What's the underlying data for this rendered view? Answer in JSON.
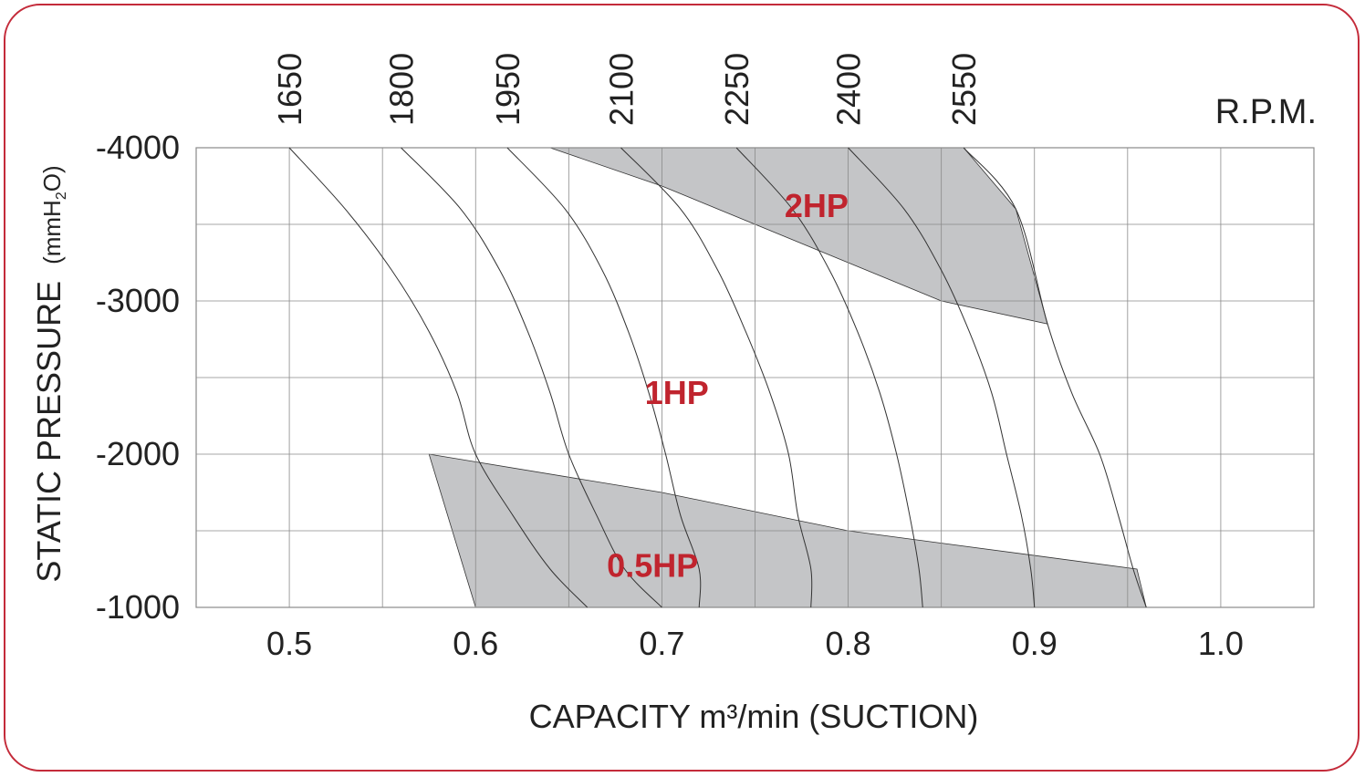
{
  "chart_data": {
    "type": "line",
    "xlabel": "CAPACITY m³/min (SUCTION)",
    "ylabel_main": "STATIC PRESSURE",
    "ylabel_unit_pre": "(mmH",
    "ylabel_unit_sub": "2",
    "ylabel_unit_post": "O)",
    "rpm_label": "R.P.M.",
    "xlim": [
      0.45,
      1.05
    ],
    "ylim": [
      -1000,
      -4000
    ],
    "x_ticks": [
      "0.5",
      "0.6",
      "0.7",
      "0.8",
      "0.9",
      "1.0"
    ],
    "x_tick_values": [
      0.5,
      0.6,
      0.7,
      0.8,
      0.9,
      1.0
    ],
    "y_ticks": [
      "-4000",
      "-3000",
      "-2000",
      "-1000"
    ],
    "y_tick_values": [
      -4000,
      -3000,
      -2000,
      -1000
    ],
    "grid": true,
    "series": [
      {
        "name": "1650",
        "points": [
          [
            0.5,
            -4000
          ],
          [
            0.53,
            -3600
          ],
          [
            0.555,
            -3200
          ],
          [
            0.575,
            -2800
          ],
          [
            0.59,
            -2400
          ],
          [
            0.6,
            -2000
          ],
          [
            0.62,
            -1600
          ],
          [
            0.64,
            -1250
          ],
          [
            0.66,
            -1000
          ]
        ]
      },
      {
        "name": "1800",
        "points": [
          [
            0.56,
            -4000
          ],
          [
            0.592,
            -3600
          ],
          [
            0.613,
            -3200
          ],
          [
            0.628,
            -2800
          ],
          [
            0.64,
            -2400
          ],
          [
            0.65,
            -2000
          ],
          [
            0.665,
            -1600
          ],
          [
            0.68,
            -1250
          ],
          [
            0.7,
            -1000
          ]
        ]
      },
      {
        "name": "1950",
        "points": [
          [
            0.617,
            -4000
          ],
          [
            0.648,
            -3600
          ],
          [
            0.668,
            -3200
          ],
          [
            0.682,
            -2800
          ],
          [
            0.693,
            -2400
          ],
          [
            0.702,
            -2000
          ],
          [
            0.71,
            -1600
          ],
          [
            0.72,
            -1250
          ],
          [
            0.72,
            -1000
          ]
        ]
      },
      {
        "name": "2100",
        "points": [
          [
            0.678,
            -4000
          ],
          [
            0.71,
            -3600
          ],
          [
            0.73,
            -3200
          ],
          [
            0.745,
            -2800
          ],
          [
            0.758,
            -2400
          ],
          [
            0.768,
            -2000
          ],
          [
            0.773,
            -1600
          ],
          [
            0.78,
            -1250
          ],
          [
            0.78,
            -1000
          ]
        ]
      },
      {
        "name": "2250",
        "points": [
          [
            0.74,
            -4000
          ],
          [
            0.77,
            -3600
          ],
          [
            0.79,
            -3200
          ],
          [
            0.805,
            -2800
          ],
          [
            0.817,
            -2400
          ],
          [
            0.826,
            -2000
          ],
          [
            0.833,
            -1600
          ],
          [
            0.838,
            -1250
          ],
          [
            0.84,
            -1000
          ]
        ]
      },
      {
        "name": "2400",
        "points": [
          [
            0.8,
            -4000
          ],
          [
            0.83,
            -3600
          ],
          [
            0.85,
            -3200
          ],
          [
            0.865,
            -2800
          ],
          [
            0.877,
            -2400
          ],
          [
            0.885,
            -2000
          ],
          [
            0.893,
            -1600
          ],
          [
            0.898,
            -1250
          ],
          [
            0.9,
            -1000
          ]
        ]
      },
      {
        "name": "2550",
        "points": [
          [
            0.862,
            -4000
          ],
          [
            0.89,
            -3600
          ],
          [
            0.907,
            -2850
          ],
          [
            0.92,
            -2400
          ],
          [
            0.935,
            -2000
          ],
          [
            0.945,
            -1600
          ],
          [
            0.953,
            -1250
          ],
          [
            0.96,
            -1000
          ]
        ]
      }
    ],
    "regions": [
      {
        "name": "2HP",
        "points": [
          [
            0.64,
            -4000
          ],
          [
            0.862,
            -4000
          ],
          [
            0.89,
            -3600
          ],
          [
            0.907,
            -2850
          ],
          [
            0.85,
            -3000
          ],
          [
            0.8,
            -3250
          ],
          [
            0.76,
            -3450
          ],
          [
            0.7,
            -3750
          ],
          [
            0.64,
            -4000
          ]
        ]
      },
      {
        "name": "0.5HP",
        "points": [
          [
            0.575,
            -2000
          ],
          [
            0.7,
            -1750
          ],
          [
            0.8,
            -1500
          ],
          [
            0.955,
            -1250
          ],
          [
            0.96,
            -1000
          ],
          [
            0.6,
            -1000
          ],
          [
            0.575,
            -2000
          ]
        ]
      }
    ],
    "annotations": [
      {
        "text": "2HP",
        "x": 0.783,
        "y": -3620
      },
      {
        "text": "1HP",
        "x": 0.708,
        "y": -2400
      },
      {
        "text": "0.5HP",
        "x": 0.695,
        "y": -1270
      }
    ]
  },
  "colors": {
    "frame": "#c42b3a",
    "label": "#c0242e",
    "region_fill": "#c4c5c7",
    "curve": "#333333",
    "grid": "#8a8a8a"
  }
}
